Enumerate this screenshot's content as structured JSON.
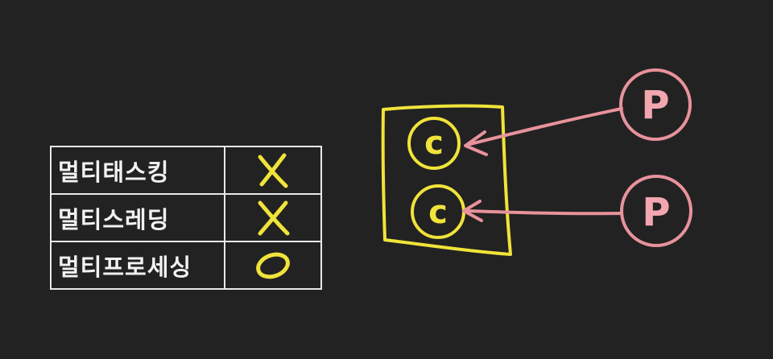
{
  "colors": {
    "background": "#222222",
    "table_line": "#e8e8e8",
    "yellow": "#f0e33a",
    "pink": "#e8929c",
    "pink_fill": "#f1a6b0"
  },
  "table": {
    "rows": [
      {
        "label": "멀티태스킹",
        "mark": "X",
        "mark_icon": "x-mark-icon"
      },
      {
        "label": "멀티스레딩",
        "mark": "X",
        "mark_icon": "x-mark-icon"
      },
      {
        "label": "멀티프로세싱",
        "mark": "O",
        "mark_icon": "o-mark-icon"
      }
    ]
  },
  "diagram": {
    "cores": [
      {
        "letter": "c"
      },
      {
        "letter": "c"
      }
    ],
    "processes": [
      {
        "letter": "P"
      },
      {
        "letter": "P"
      }
    ]
  }
}
